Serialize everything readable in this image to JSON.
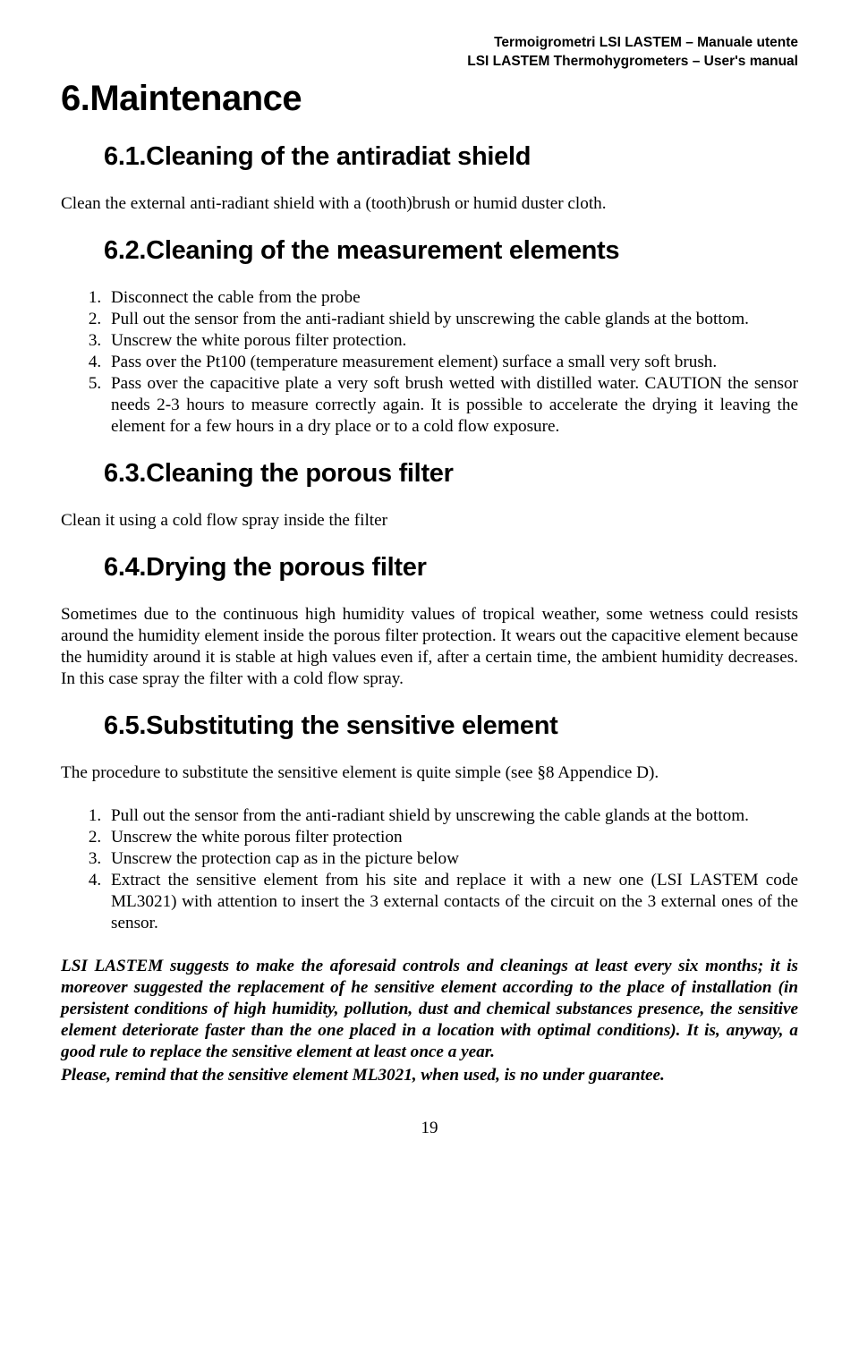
{
  "header": {
    "line1": "Termoigrometri LSI LASTEM – Manuale utente",
    "line2": "LSI LASTEM Thermohygrometers – User's manual"
  },
  "h1": "6.Maintenance",
  "s61": {
    "heading": "6.1.Cleaning of the antiradiat shield",
    "text": "Clean the external anti-radiant shield with a (tooth)brush or humid duster cloth."
  },
  "s62": {
    "heading": "6.2.Cleaning of the measurement elements",
    "items": [
      "Disconnect the cable from the probe",
      "Pull out the sensor from the anti-radiant shield by unscrewing the cable glands at the bottom.",
      "Unscrew the white porous filter protection.",
      "Pass over the Pt100 (temperature measurement element) surface a small very soft brush.",
      "Pass over the capacitive plate a very soft brush wetted with distilled water. CAUTION the sensor needs 2-3 hours to measure correctly again. It is possible to accelerate the drying it leaving the element for a few hours in a dry place or to a cold flow exposure."
    ]
  },
  "s63": {
    "heading": "6.3.Cleaning the porous filter",
    "text": "Clean it using a cold flow spray inside the filter"
  },
  "s64": {
    "heading": "6.4.Drying the porous filter",
    "text": "Sometimes due to the continuous high humidity values of tropical weather, some wetness could resists around the humidity element inside the porous filter protection. It wears out the capacitive element because  the humidity around it is stable at high values even if, after a certain time, the ambient humidity decreases. In this case spray the filter with a cold flow spray."
  },
  "s65": {
    "heading": "6.5.Substituting the sensitive element",
    "intro": "The procedure to substitute the sensitive element is quite simple (see §8 Appendice D).",
    "items": [
      "Pull out the sensor from the anti-radiant shield by unscrewing the cable glands at the bottom.",
      "Unscrew the white porous filter protection",
      "Unscrew the protection cap as in the picture below",
      "Extract the sensitive element from his site and replace it with a new one (LSI LASTEM code ML3021) with attention to insert the 3 external contacts of the circuit on the 3 external ones of the sensor."
    ]
  },
  "closing": {
    "p1": "LSI LASTEM suggests to make the aforesaid controls and cleanings at least every six months; it is moreover suggested the replacement of he sensitive element according to the place of installation (in persistent conditions of high humidity, pollution, dust and chemical substances presence, the sensitive element deteriorate faster than the one placed in a location with optimal conditions). It is, anyway, a good rule to replace the sensitive element at least once a year.",
    "p2": "Please, remind that the sensitive element ML3021, when used, is no under guarantee."
  },
  "page_number": "19"
}
